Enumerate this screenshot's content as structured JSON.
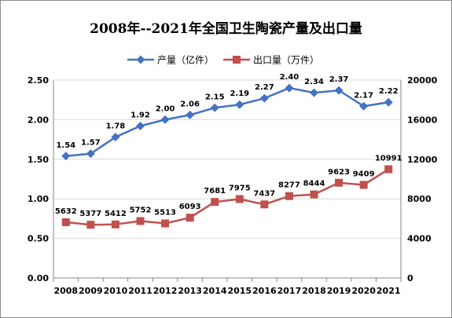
{
  "chart_data": {
    "type": "line",
    "title": "2008年--2021年全国卫生陶瓷产量及出口量",
    "categories": [
      "2008",
      "2009",
      "2010",
      "2011",
      "2012",
      "2013",
      "2014",
      "2015",
      "2016",
      "2017",
      "2018",
      "2019",
      "2020",
      "2021"
    ],
    "series": [
      {
        "name": "产量（亿件）",
        "axis": "left",
        "color": "#4472C4",
        "marker": "diamond",
        "values": [
          1.54,
          1.57,
          1.78,
          1.92,
          2.0,
          2.06,
          2.15,
          2.19,
          2.27,
          2.4,
          2.34,
          2.37,
          2.17,
          2.22
        ],
        "labels": [
          "1.54",
          "1.57",
          "1.78",
          "1.92",
          "2.00",
          "2.06",
          "2.15",
          "2.19",
          "2.27",
          "2.40",
          "2.34",
          "2.37",
          "2.17",
          "2.22"
        ]
      },
      {
        "name": "出口量（万件）",
        "axis": "right",
        "color": "#C0504D",
        "marker": "square",
        "values": [
          5632,
          5377,
          5412,
          5752,
          5513,
          6093,
          7681,
          7975,
          7437,
          8277,
          8444,
          9623,
          9409,
          10991
        ],
        "labels": [
          "5632",
          "5377",
          "5412",
          "5752",
          "5513",
          "6093",
          "7681",
          "7975",
          "7437",
          "8277",
          "8444",
          "9623",
          "9409",
          "10991"
        ]
      }
    ],
    "y_left": {
      "min": 0,
      "max": 2.5,
      "step": 0.5,
      "ticks": [
        "0.00",
        "0.50",
        "1.00",
        "1.50",
        "2.00",
        "2.50"
      ]
    },
    "y_right": {
      "min": 0,
      "max": 20000,
      "step": 4000,
      "ticks": [
        "0",
        "4000",
        "8000",
        "12000",
        "16000",
        "20000"
      ]
    },
    "grid": true,
    "legend": "top"
  }
}
